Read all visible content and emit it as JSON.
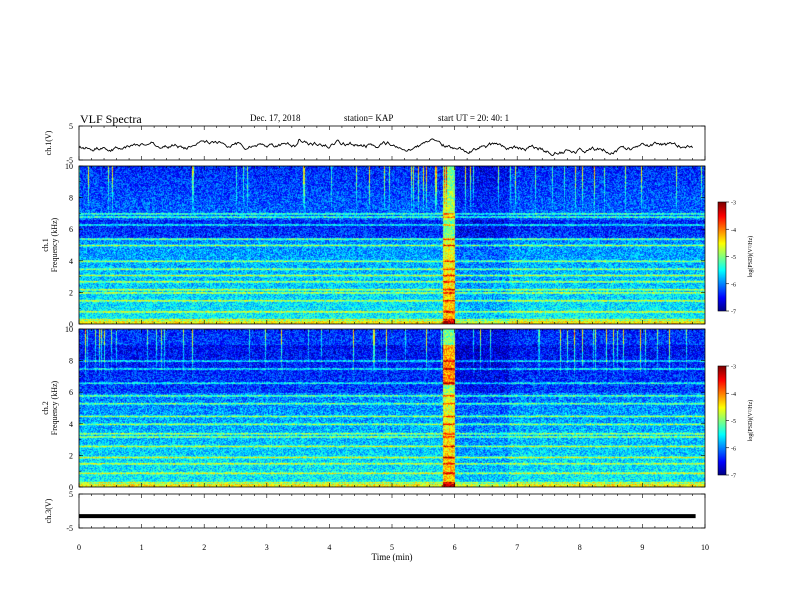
{
  "header": {
    "title": "VLF Spectra",
    "date": "Dec. 17, 2018",
    "station": "station= KAP",
    "start_ut": "start  UT  =  20: 40: 1"
  },
  "chart_data": [
    {
      "type": "line",
      "name": "ch1-waveform",
      "ylabel": "ch.1(V)",
      "ylim": [
        -5,
        5
      ],
      "yticks": [
        "5",
        "-5"
      ],
      "xlim": [
        0,
        10
      ],
      "description_note": "",
      "trace_color": "#000000"
    },
    {
      "type": "heatmap",
      "name": "ch1-spectrogram",
      "ylabel_line1": "ch.1",
      "ylabel_line2": "Frequency (kHz)",
      "ylim": [
        0,
        10
      ],
      "yticks": [
        "0",
        "2",
        "4",
        "6",
        "8",
        "10"
      ],
      "xlim": [
        0,
        10
      ],
      "colorbar": {
        "label": "log(PSD)(V²/Hz)",
        "ticks": [
          "-3",
          "-4",
          "-5",
          "-6",
          "-7"
        ],
        "range": [
          -7,
          -3
        ]
      },
      "bands_khz": [
        0.3,
        0.8,
        1.5,
        2.0,
        2.2,
        2.7,
        3.1,
        3.5,
        4.0,
        5.0,
        5.4,
        6.3,
        6.8,
        7.0
      ],
      "broadband_event_min": 5.9
    },
    {
      "type": "heatmap",
      "name": "ch2-spectrogram",
      "ylabel_line1": "ch.2",
      "ylabel_line2": "Frequency (kHz)",
      "ylim": [
        0,
        10
      ],
      "yticks": [
        "0",
        "2",
        "4",
        "6",
        "8",
        "10"
      ],
      "xlim": [
        0,
        10
      ],
      "colorbar": {
        "label": "log(PSD)(V²/Hz)",
        "ticks": [
          "-3",
          "-4",
          "-5",
          "-6",
          "-7"
        ],
        "range": [
          -7,
          -3
        ]
      },
      "bands_khz": [
        0.3,
        0.9,
        1.5,
        1.9,
        2.6,
        3.2,
        3.4,
        4.0,
        4.5,
        5.3,
        5.8,
        6.6,
        7.5,
        8.0
      ],
      "broadband_event_min": 5.9
    },
    {
      "type": "line",
      "name": "ch3-waveform",
      "ylabel": "ch.3(V)",
      "ylim": [
        -5,
        5
      ],
      "yticks": [
        "5",
        "-5"
      ],
      "xlim": [
        0,
        10
      ],
      "constant_value_v": -1.5
    }
  ],
  "x_axis": {
    "label": "Time (min)",
    "ticks": [
      "0",
      "1",
      "2",
      "3",
      "4",
      "5",
      "6",
      "7",
      "8",
      "9",
      "10"
    ]
  },
  "colors": {
    "colormap": [
      "#000080",
      "#0000ff",
      "#0080ff",
      "#00ffff",
      "#40ff80",
      "#ffff00",
      "#ff8000",
      "#ff0000",
      "#800000"
    ]
  }
}
